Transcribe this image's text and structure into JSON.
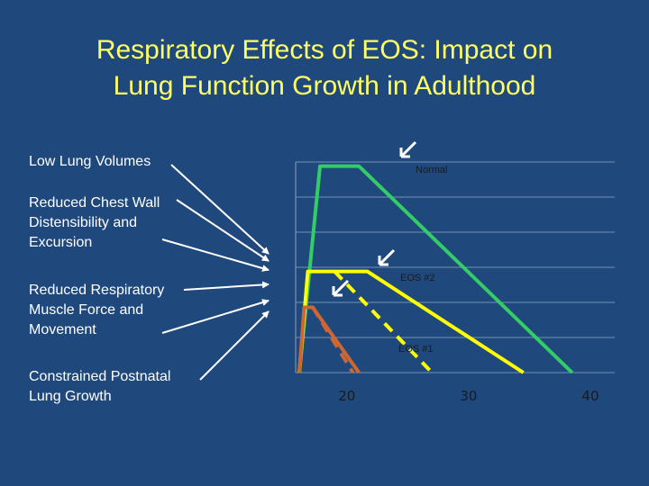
{
  "title": {
    "line1": "Respiratory Effects of EOS: Impact on",
    "line2": "Lung Function Growth in Adulthood"
  },
  "factors": [
    {
      "lines": [
        "Low Lung Volumes"
      ]
    },
    {
      "lines": [
        "Reduced Chest Wall",
        "Distensibility and",
        "Excursion"
      ]
    },
    {
      "lines": [
        "Reduced Respiratory",
        "Muscle Force and",
        "Movement"
      ]
    },
    {
      "lines": [
        "Constrained Postnatal",
        "Lung Growth"
      ]
    }
  ],
  "colors": {
    "background": "#1f497d",
    "title": "#ffff66",
    "normal": "#33cc66",
    "eos2": "#ffff00",
    "eos1": "#cc6633",
    "gridline": "#8aa0c0"
  },
  "chart_data": {
    "type": "line",
    "xlabel": "",
    "ylabel": "",
    "x_ticks": [
      20,
      30,
      40
    ],
    "xlim": [
      15.8,
      42
    ],
    "ylim": [
      0,
      100
    ],
    "grid": true,
    "series": [
      {
        "name": "Normal",
        "color": "#33cc66",
        "solid": [
          [
            16.1,
            0
          ],
          [
            17.8,
            98
          ],
          [
            21.0,
            98
          ],
          [
            38.5,
            0
          ]
        ],
        "dashed": []
      },
      {
        "name": "EOS #2",
        "color": "#ffff00",
        "solid": [
          [
            16.1,
            0
          ],
          [
            16.8,
            48
          ],
          [
            19.0,
            48
          ],
          [
            21.7,
            48
          ],
          [
            34.5,
            0
          ]
        ],
        "dashed": [
          [
            19.0,
            48
          ],
          [
            27.0,
            0
          ]
        ]
      },
      {
        "name": "EOS #1",
        "color": "#cc6633",
        "solid": [
          [
            16.1,
            0
          ],
          [
            16.5,
            31
          ],
          [
            17.2,
            31
          ],
          [
            21.0,
            0
          ]
        ],
        "dashed": [
          [
            17.2,
            31
          ],
          [
            20.5,
            0
          ]
        ]
      }
    ],
    "annotations": [
      {
        "text": "Normal",
        "series": 0
      },
      {
        "text": "EOS #2",
        "series": 1
      },
      {
        "text": "EOS #1",
        "series": 2
      }
    ]
  }
}
